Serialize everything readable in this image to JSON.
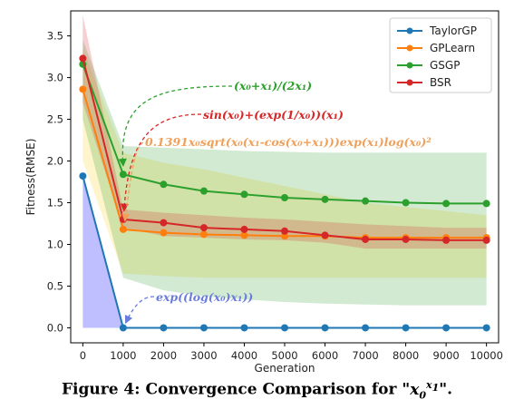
{
  "chart_data": {
    "type": "line",
    "title": "",
    "xlabel": "Generation",
    "ylabel": "Fitness(RMSE)",
    "xlim": [
      -300,
      10300
    ],
    "ylim": [
      -0.18,
      3.8
    ],
    "x": [
      0,
      1000,
      2000,
      3000,
      4000,
      5000,
      6000,
      7000,
      8000,
      9000,
      10000
    ],
    "xticks": [
      0,
      1000,
      2000,
      3000,
      4000,
      5000,
      6000,
      7000,
      8000,
      9000,
      10000
    ],
    "yticks": [
      0.0,
      0.5,
      1.0,
      1.5,
      2.0,
      2.5,
      3.0,
      3.5
    ],
    "ytick_labels": [
      "0.0",
      "0.5",
      "1.0",
      "1.5",
      "2.0",
      "2.5",
      "3.0",
      "3.5"
    ],
    "grid": false,
    "legend_position": "top-right",
    "series": [
      {
        "name": "TaylorGP",
        "color": "#1f77b4",
        "band_color": "#0000ff",
        "band_opacity": 0.25,
        "values": [
          1.82,
          0.0,
          0.0,
          0.0,
          0.0,
          0.0,
          0.0,
          0.0,
          0.0,
          0.0,
          0.0
        ],
        "band_low": [
          0.0,
          0.0,
          0.0,
          0.0,
          0.0,
          0.0,
          0.0,
          0.0,
          0.0,
          0.0,
          0.0
        ],
        "band_high": [
          1.82,
          0.0,
          0.0,
          0.0,
          0.0,
          0.0,
          0.0,
          0.0,
          0.0,
          0.0,
          0.0
        ]
      },
      {
        "name": "GPLearn",
        "color": "#ff7f0e",
        "band_color": "#ffdd55",
        "band_opacity": 0.3,
        "values": [
          2.86,
          1.18,
          1.14,
          1.12,
          1.11,
          1.1,
          1.1,
          1.08,
          1.08,
          1.08,
          1.08
        ],
        "band_low": [
          2.0,
          0.65,
          0.62,
          0.6,
          0.6,
          0.6,
          0.6,
          0.6,
          0.6,
          0.6,
          0.6
        ],
        "band_high": [
          3.35,
          2.1,
          1.98,
          1.9,
          1.8,
          1.7,
          1.6,
          1.5,
          1.45,
          1.4,
          1.35
        ]
      },
      {
        "name": "GSGP",
        "color": "#2ca02c",
        "band_color": "#2ca02c",
        "band_opacity": 0.22,
        "values": [
          3.16,
          1.84,
          1.72,
          1.64,
          1.6,
          1.56,
          1.54,
          1.52,
          1.5,
          1.49,
          1.49
        ],
        "band_low": [
          2.5,
          0.6,
          0.45,
          0.38,
          0.34,
          0.31,
          0.29,
          0.28,
          0.27,
          0.27,
          0.27
        ],
        "band_high": [
          3.45,
          2.18,
          2.16,
          2.14,
          2.12,
          2.11,
          2.1,
          2.1,
          2.1,
          2.1,
          2.1
        ]
      },
      {
        "name": "BSR",
        "color": "#d62728",
        "band_color": "#d62728",
        "band_opacity": 0.22,
        "values": [
          3.23,
          1.3,
          1.26,
          1.2,
          1.18,
          1.16,
          1.11,
          1.06,
          1.06,
          1.05,
          1.05
        ],
        "band_low": [
          2.7,
          1.2,
          1.1,
          1.08,
          1.06,
          1.05,
          1.02,
          0.95,
          0.95,
          0.95,
          0.95
        ],
        "band_high": [
          3.75,
          1.42,
          1.38,
          1.35,
          1.32,
          1.3,
          1.27,
          1.24,
          1.22,
          1.2,
          1.2
        ]
      }
    ],
    "annotations": [
      {
        "text": "(x₀+x₁)/(2x₁)",
        "color": "#2ca02c",
        "anchor_x": 1000,
        "anchor_y": 1.84
      },
      {
        "text": "sin(x₀)+(exp(1/x₀))(x₁)",
        "color": "#d62728",
        "anchor_x": 1000,
        "anchor_y": 1.3
      },
      {
        "text": "0.1391x₀sqrt(x₀(x₁-cos(x₀+x₁)))exp(x₁)log(x₀)²",
        "color": "#f0a05a",
        "anchor_x": 1000,
        "anchor_y": 1.18
      },
      {
        "text": "exp((log(x₀)x₁))",
        "color": "#6a7ddb",
        "anchor_x": 1000,
        "anchor_y": 0.0
      }
    ]
  },
  "caption": {
    "prefix": "Figure 4: Convergence Comparison for \"",
    "base": "x",
    "base_sub": "0",
    "exponent": "x",
    "exponent_sub": "1",
    "suffix": "\"."
  }
}
